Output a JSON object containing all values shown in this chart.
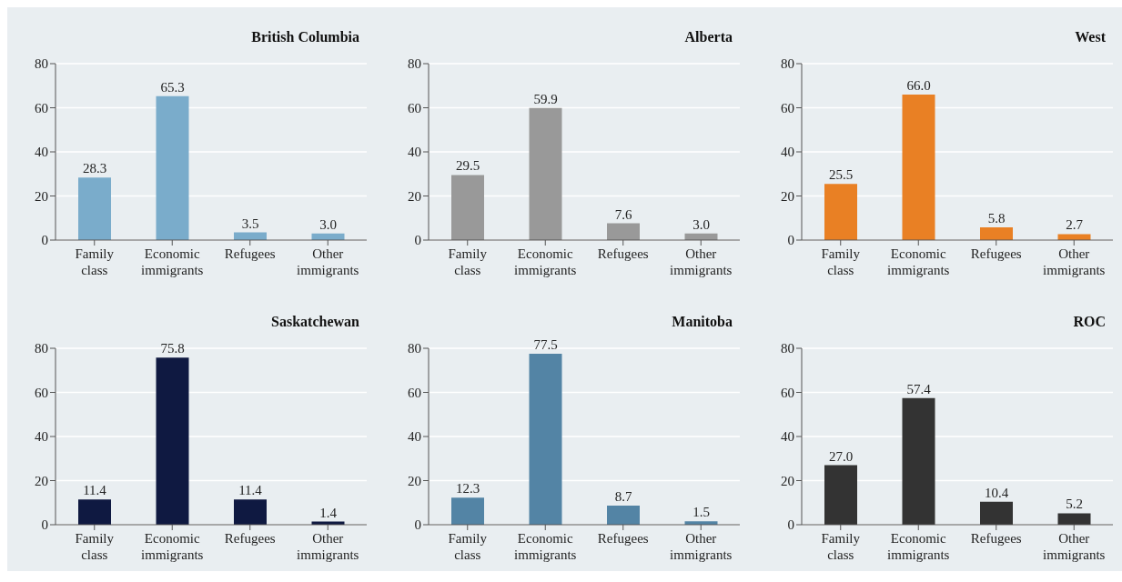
{
  "chart_data": [
    {
      "type": "bar",
      "title": "British Columbia",
      "categories": [
        "Family class",
        "Economic immigrants",
        "Refugees",
        "Other immigrants"
      ],
      "values": [
        28.3,
        65.3,
        3.5,
        3.0
      ],
      "value_labels": [
        "28.3",
        "65.3",
        "3.5",
        "3.0"
      ],
      "color": "#7aaccb",
      "ylim": [
        0,
        80
      ],
      "yticks": [
        0,
        20,
        40,
        60,
        80
      ],
      "grid": "y"
    },
    {
      "type": "bar",
      "title": "Alberta",
      "categories": [
        "Family class",
        "Economic immigrants",
        "Refugees",
        "Other immigrants"
      ],
      "values": [
        29.5,
        59.9,
        7.6,
        3.0
      ],
      "value_labels": [
        "29.5",
        "59.9",
        "7.6",
        "3.0"
      ],
      "color": "#999999",
      "ylim": [
        0,
        80
      ],
      "yticks": [
        0,
        20,
        40,
        60,
        80
      ],
      "grid": "y"
    },
    {
      "type": "bar",
      "title": "West",
      "categories": [
        "Family class",
        "Economic immigrants",
        "Refugees",
        "Other immigrants"
      ],
      "values": [
        25.5,
        66.0,
        5.8,
        2.7
      ],
      "value_labels": [
        "25.5",
        "66.0",
        "5.8",
        "2.7"
      ],
      "color": "#e98024",
      "ylim": [
        0,
        80
      ],
      "yticks": [
        0,
        20,
        40,
        60,
        80
      ],
      "grid": "y"
    },
    {
      "type": "bar",
      "title": "Saskatchewan",
      "categories": [
        "Family class",
        "Economic immigrants",
        "Refugees",
        "Other immigrants"
      ],
      "values": [
        11.4,
        75.8,
        11.4,
        1.4
      ],
      "value_labels": [
        "11.4",
        "75.8",
        "11.4",
        "1.4"
      ],
      "color": "#0f1941",
      "ylim": [
        0,
        80
      ],
      "yticks": [
        0,
        20,
        40,
        60,
        80
      ],
      "grid": "y"
    },
    {
      "type": "bar",
      "title": "Manitoba",
      "categories": [
        "Family class",
        "Economic immigrants",
        "Refugees",
        "Other immigrants"
      ],
      "values": [
        12.3,
        77.5,
        8.7,
        1.5
      ],
      "value_labels": [
        "12.3",
        "77.5",
        "8.7",
        "1.5"
      ],
      "color": "#5384a5",
      "ylim": [
        0,
        80
      ],
      "yticks": [
        0,
        20,
        40,
        60,
        80
      ],
      "grid": "y"
    },
    {
      "type": "bar",
      "title": "ROC",
      "categories": [
        "Family class",
        "Economic immigrants",
        "Refugees",
        "Other immigrants"
      ],
      "values": [
        27.0,
        57.4,
        10.4,
        5.2
      ],
      "value_labels": [
        "27.0",
        "57.4",
        "10.4",
        "5.2"
      ],
      "color": "#333333",
      "ylim": [
        0,
        80
      ],
      "yticks": [
        0,
        20,
        40,
        60,
        80
      ],
      "grid": "y"
    }
  ]
}
